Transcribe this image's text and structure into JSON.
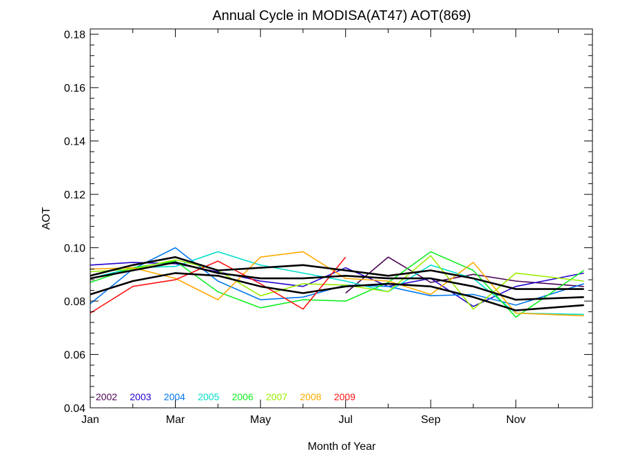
{
  "chart_data": {
    "type": "line",
    "title": "Annual Cycle in MODISA(AT47) AOT(869)",
    "xlabel": "Month of Year",
    "ylabel": "AOT",
    "xlim": [
      1,
      12.8
    ],
    "ylim": [
      0.04,
      0.182
    ],
    "xticks": [
      {
        "month": 1,
        "label": "Jan"
      },
      {
        "month": 3,
        "label": "Mar"
      },
      {
        "month": 5,
        "label": "May"
      },
      {
        "month": 7,
        "label": "Jul"
      },
      {
        "month": 9,
        "label": "Sep"
      },
      {
        "month": 11,
        "label": "Nov"
      }
    ],
    "yticks": [
      {
        "value": 0.04,
        "label": "0.04"
      },
      {
        "value": 0.06,
        "label": "0.06"
      },
      {
        "value": 0.08,
        "label": "0.08"
      },
      {
        "value": 0.1,
        "label": "0.10"
      },
      {
        "value": 0.12,
        "label": "0.12"
      },
      {
        "value": 0.14,
        "label": "0.14"
      },
      {
        "value": 0.16,
        "label": "0.16"
      },
      {
        "value": 0.18,
        "label": "0.18"
      }
    ],
    "x": [
      1,
      2,
      3,
      4,
      5,
      6,
      7,
      8,
      9,
      10,
      11,
      12.6
    ],
    "series": [
      {
        "name": "2002",
        "color": "#4b0055",
        "values": [
          null,
          null,
          null,
          null,
          null,
          null,
          0.083,
          0.0965,
          0.087,
          0.09,
          0.0875,
          0.0855
        ]
      },
      {
        "name": "2003",
        "color": "#2200cc",
        "values": [
          0.0935,
          0.0945,
          0.094,
          0.091,
          0.0875,
          0.0855,
          0.0925,
          0.0855,
          0.0885,
          0.078,
          0.0855,
          0.0905
        ]
      },
      {
        "name": "2004",
        "color": "#0077ee",
        "values": [
          0.079,
          0.092,
          0.1,
          0.0875,
          0.0805,
          0.0815,
          0.086,
          0.0855,
          0.082,
          0.0825,
          0.0785,
          0.0865
        ]
      },
      {
        "name": "2005",
        "color": "#00ddcc",
        "values": [
          0.0885,
          0.0925,
          0.093,
          0.0985,
          0.0935,
          0.0905,
          0.0875,
          0.0835,
          0.0935,
          0.0885,
          0.0755,
          0.075
        ]
      },
      {
        "name": "2006",
        "color": "#11ee22",
        "values": [
          0.087,
          0.0925,
          0.095,
          0.0835,
          0.0775,
          0.0805,
          0.08,
          0.087,
          0.0985,
          0.0915,
          0.074,
          0.0915
        ]
      },
      {
        "name": "2007",
        "color": "#99ee00",
        "values": [
          0.091,
          0.092,
          0.0955,
          0.0915,
          0.082,
          0.0865,
          0.086,
          0.0835,
          0.097,
          0.077,
          0.0905,
          0.0875
        ]
      },
      {
        "name": "2008",
        "color": "#ffaa00",
        "values": [
          0.092,
          0.0925,
          0.0885,
          0.0805,
          0.0965,
          0.0985,
          0.0885,
          0.0875,
          0.0825,
          0.0945,
          0.0755,
          0.0745
        ]
      },
      {
        "name": "2009",
        "color": "#ff1111",
        "values": [
          0.0755,
          0.0855,
          0.088,
          0.095,
          0.0865,
          0.077,
          0.0965,
          null,
          null,
          null,
          null,
          null
        ]
      },
      {
        "name": "",
        "color": "#000000",
        "values": [
          0.0825,
          0.0875,
          0.0905,
          0.0895,
          0.0855,
          0.083,
          0.0855,
          0.0865,
          0.0855,
          0.0815,
          0.0765,
          0.0785
        ]
      },
      {
        "name": "",
        "color": "#000000",
        "values": [
          0.0895,
          0.0935,
          0.0965,
          0.0915,
          0.0925,
          0.0935,
          0.0915,
          0.0895,
          0.0915,
          0.0885,
          0.0845,
          0.0845
        ]
      },
      {
        "name": "",
        "color": "#000000",
        "values": [
          0.0885,
          0.0915,
          0.0945,
          0.0905,
          0.0885,
          0.0885,
          0.0895,
          0.0885,
          0.0885,
          0.0855,
          0.0805,
          0.0815
        ]
      }
    ],
    "legend": {
      "placement": "bottom-left",
      "entries": [
        "2002",
        "2003",
        "2004",
        "2005",
        "2006",
        "2007",
        "2008",
        "2009"
      ]
    },
    "grid": false
  }
}
